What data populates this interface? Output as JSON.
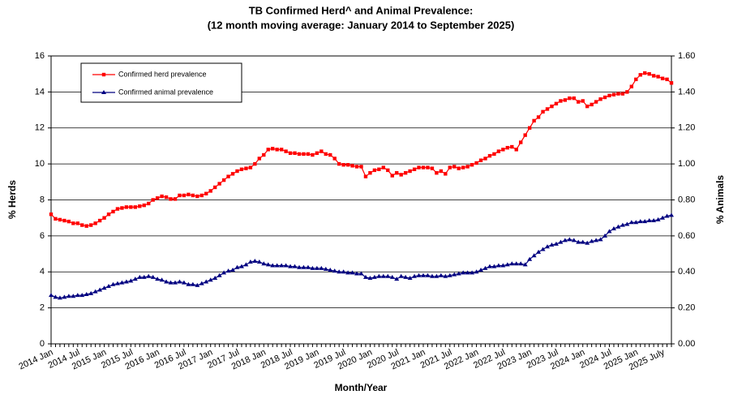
{
  "chart_data": {
    "type": "line",
    "title": "TB Confirmed Herd^ and Animal Prevalence:",
    "subtitle": "(12 month moving average: January 2014 to September 2025)",
    "x_label": "Month/Year",
    "y_label": "% Herds",
    "y2_label": "% Animals",
    "categories": [
      "2014 Jan",
      null,
      null,
      null,
      null,
      null,
      "2014 Jul",
      null,
      null,
      null,
      null,
      null,
      "2015 Jan",
      null,
      null,
      null,
      null,
      null,
      "2015 Jul",
      null,
      null,
      null,
      null,
      null,
      "2016 Jan",
      null,
      null,
      null,
      null,
      null,
      "2016 Jul",
      null,
      null,
      null,
      null,
      null,
      "2017 Jan",
      null,
      null,
      null,
      null,
      null,
      "2017 Jul",
      null,
      null,
      null,
      null,
      null,
      "2018 Jan",
      null,
      null,
      null,
      null,
      null,
      "2018 Jul",
      null,
      null,
      null,
      null,
      null,
      "2019 Jan",
      null,
      null,
      null,
      null,
      null,
      "2019 Jul",
      null,
      null,
      null,
      null,
      null,
      "2020 Jan",
      null,
      null,
      null,
      null,
      null,
      "2020 Jul",
      null,
      null,
      null,
      null,
      null,
      "2021 Jan",
      null,
      null,
      null,
      null,
      null,
      "2021 Jul",
      null,
      null,
      null,
      null,
      null,
      "2022 Jan",
      null,
      null,
      null,
      null,
      null,
      "2022 Jul",
      null,
      null,
      null,
      null,
      null,
      "2023 Jan",
      null,
      null,
      null,
      null,
      null,
      "2023 Jul",
      null,
      null,
      null,
      null,
      null,
      "2024 Jan",
      null,
      null,
      null,
      null,
      null,
      "2024 Jul",
      null,
      null,
      null,
      null,
      null,
      "2025 Jan",
      null,
      null,
      null,
      null,
      null,
      "2025 July",
      null,
      null
    ],
    "series": [
      {
        "name": "Confirmed herd prevalence",
        "color": "#ff0000",
        "marker": "square",
        "values": [
          7.2,
          6.95,
          6.9,
          6.85,
          6.8,
          6.7,
          6.7,
          6.6,
          6.55,
          6.6,
          6.7,
          6.85,
          7.0,
          7.2,
          7.35,
          7.5,
          7.55,
          7.6,
          7.6,
          7.6,
          7.65,
          7.7,
          7.8,
          8.0,
          8.1,
          8.2,
          8.15,
          8.05,
          8.05,
          8.25,
          8.25,
          8.3,
          8.25,
          8.2,
          8.25,
          8.35,
          8.5,
          8.7,
          8.9,
          9.1,
          9.3,
          9.45,
          9.6,
          9.7,
          9.75,
          9.8,
          10.0,
          10.3,
          10.5,
          10.8,
          10.85,
          10.8,
          10.8,
          10.7,
          10.6,
          10.6,
          10.55,
          10.55,
          10.55,
          10.5,
          10.6,
          10.7,
          10.55,
          10.5,
          10.3,
          10.0,
          9.95,
          9.95,
          9.9,
          9.85,
          9.85,
          9.3,
          9.5,
          9.65,
          9.7,
          9.8,
          9.65,
          9.35,
          9.5,
          9.4,
          9.5,
          9.6,
          9.7,
          9.8,
          9.8,
          9.8,
          9.75,
          9.5,
          9.6,
          9.45,
          9.8,
          9.85,
          9.75,
          9.8,
          9.85,
          9.95,
          10.05,
          10.2,
          10.3,
          10.45,
          10.55,
          10.7,
          10.8,
          10.9,
          10.95,
          10.8,
          11.2,
          11.6,
          12.0,
          12.4,
          12.6,
          12.9,
          13.05,
          13.2,
          13.35,
          13.5,
          13.55,
          13.65,
          13.65,
          13.45,
          13.5,
          13.2,
          13.3,
          13.45,
          13.6,
          13.7,
          13.8,
          13.85,
          13.9,
          13.9,
          14.0,
          14.3,
          14.7,
          14.95,
          15.05,
          15.0,
          14.9,
          14.85,
          14.75,
          14.7,
          14.5
        ]
      },
      {
        "name": "Confirmed animal prevalence",
        "color": "#000080",
        "marker": "triangle",
        "axis": "y2",
        "values": [
          0.27,
          0.26,
          0.255,
          0.26,
          0.265,
          0.265,
          0.27,
          0.27,
          0.275,
          0.28,
          0.29,
          0.3,
          0.31,
          0.32,
          0.33,
          0.335,
          0.34,
          0.345,
          0.35,
          0.36,
          0.37,
          0.37,
          0.375,
          0.37,
          0.36,
          0.355,
          0.345,
          0.34,
          0.34,
          0.345,
          0.34,
          0.33,
          0.33,
          0.325,
          0.335,
          0.345,
          0.355,
          0.365,
          0.38,
          0.395,
          0.405,
          0.41,
          0.425,
          0.43,
          0.44,
          0.455,
          0.46,
          0.455,
          0.445,
          0.44,
          0.435,
          0.435,
          0.435,
          0.435,
          0.43,
          0.43,
          0.425,
          0.425,
          0.425,
          0.42,
          0.42,
          0.42,
          0.415,
          0.41,
          0.405,
          0.4,
          0.4,
          0.395,
          0.395,
          0.39,
          0.39,
          0.37,
          0.365,
          0.37,
          0.375,
          0.375,
          0.375,
          0.37,
          0.36,
          0.375,
          0.37,
          0.365,
          0.375,
          0.38,
          0.38,
          0.38,
          0.375,
          0.375,
          0.38,
          0.375,
          0.38,
          0.385,
          0.39,
          0.395,
          0.395,
          0.395,
          0.4,
          0.41,
          0.42,
          0.43,
          0.43,
          0.435,
          0.435,
          0.44,
          0.445,
          0.445,
          0.445,
          0.44,
          0.47,
          0.49,
          0.51,
          0.525,
          0.54,
          0.55,
          0.555,
          0.565,
          0.575,
          0.58,
          0.575,
          0.565,
          0.565,
          0.56,
          0.57,
          0.575,
          0.58,
          0.6,
          0.625,
          0.64,
          0.65,
          0.66,
          0.665,
          0.675,
          0.675,
          0.68,
          0.68,
          0.685,
          0.685,
          0.69,
          0.7,
          0.71,
          0.715
        ]
      }
    ],
    "ylim": [
      0,
      16
    ],
    "yticks": [
      0,
      2,
      4,
      6,
      8,
      10,
      12,
      14,
      16
    ],
    "y2lim": [
      0,
      1.6
    ],
    "y2ticks": [
      {
        "value": 0,
        "label": "0.00"
      },
      {
        "value": 0.2,
        "label": "0.20"
      },
      {
        "value": 0.4,
        "label": "0.40"
      },
      {
        "value": 0.6,
        "label": "0.60"
      },
      {
        "value": 0.8,
        "label": "0.80"
      },
      {
        "value": 1.0,
        "label": "1.00"
      },
      {
        "value": 1.2,
        "label": "1.20"
      },
      {
        "value": 1.4,
        "label": "1.40"
      },
      {
        "value": 1.6,
        "label": "1.60"
      }
    ],
    "grid": true,
    "legend": "top-left"
  }
}
